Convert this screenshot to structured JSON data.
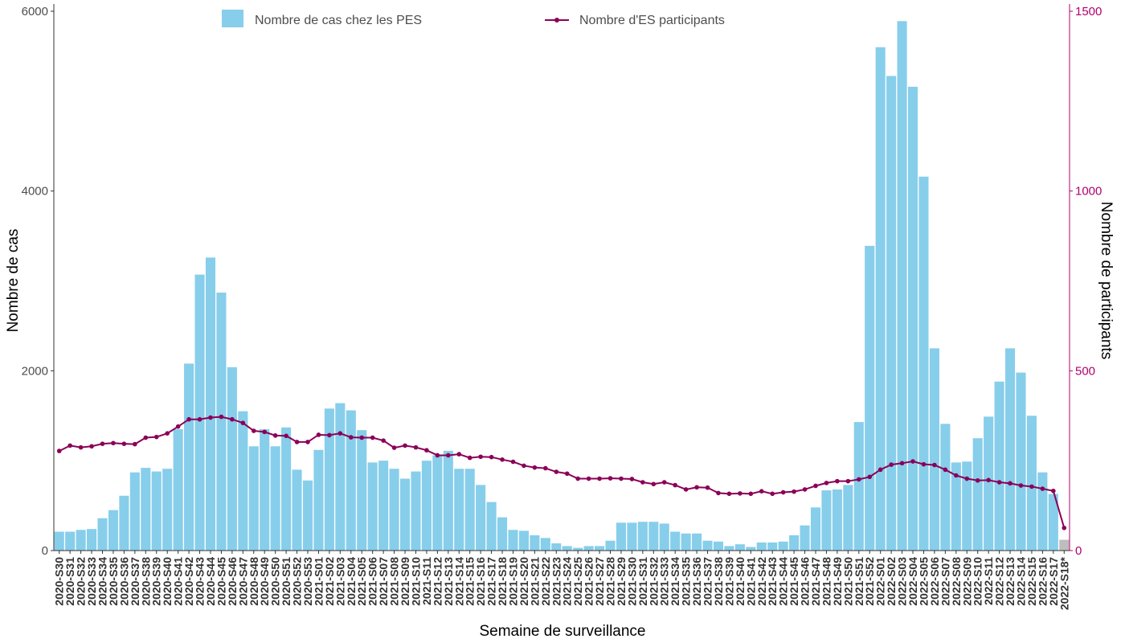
{
  "chart_data": {
    "type": "bar",
    "xlabel": "Semaine de surveillance",
    "ylabel": "Nombre de cas",
    "y2label": "Nombre de participants",
    "ylim": [
      0,
      6000
    ],
    "y2lim": [
      0,
      1500
    ],
    "yticks": [
      0,
      2000,
      4000,
      6000
    ],
    "y2ticks": [
      0,
      500,
      1000,
      1500
    ],
    "grid": false,
    "legend_position": "top",
    "colors": {
      "bars": "#87CEEB",
      "bars_partial": "#BEBEBE",
      "line": "#8B0057",
      "right_axis": "#B0006E"
    },
    "categories": [
      "2020-S30",
      "2020-S31",
      "2020-S32",
      "2020-S33",
      "2020-S34",
      "2020-S35",
      "2020-S36",
      "2020-S37",
      "2020-S38",
      "2020-S39",
      "2020-S40",
      "2020-S41",
      "2020-S42",
      "2020-S43",
      "2020-S44",
      "2020-S45",
      "2020-S46",
      "2020-S47",
      "2020-S48",
      "2020-S49",
      "2020-S50",
      "2020-S51",
      "2020-S52",
      "2020-S53",
      "2021-S01",
      "2021-S02",
      "2021-S03",
      "2021-S04",
      "2021-S05",
      "2021-S06",
      "2021-S07",
      "2021-S08",
      "2021-S09",
      "2021-S10",
      "2021-S11",
      "2021-S12",
      "2021-S13",
      "2021-S14",
      "2021-S15",
      "2021-S16",
      "2021-S17",
      "2021-S18",
      "2021-S19",
      "2021-S20",
      "2021-S21",
      "2021-S22",
      "2021-S23",
      "2021-S24",
      "2021-S25",
      "2021-S26",
      "2021-S27",
      "2021-S28",
      "2021-S29",
      "2021-S30",
      "2021-S31",
      "2021-S32",
      "2021-S33",
      "2021-S34",
      "2021-S35",
      "2021-S36",
      "2021-S37",
      "2021-S38",
      "2021-S39",
      "2021-S40",
      "2021-S41",
      "2021-S42",
      "2021-S43",
      "2021-S44",
      "2021-S45",
      "2021-S46",
      "2021-S47",
      "2021-S48",
      "2021-S49",
      "2021-S50",
      "2021-S51",
      "2021-S52",
      "2022-S01",
      "2022-S02",
      "2022-S03",
      "2022-S04",
      "2022-S05",
      "2022-S06",
      "2022-S07",
      "2022-S08",
      "2022-S09",
      "2022-S10",
      "2022-S11",
      "2022-S12",
      "2022-S13",
      "2022-S14",
      "2022-S15",
      "2022-S16",
      "2022-S17",
      "2022-S18*"
    ],
    "series": [
      {
        "name": "Nombre de cas chez les PES",
        "kind": "bar",
        "axis": "left",
        "values": [
          210,
          210,
          230,
          240,
          360,
          450,
          610,
          870,
          920,
          880,
          910,
          1350,
          2080,
          3070,
          3260,
          2870,
          2040,
          1550,
          1160,
          1350,
          1160,
          1370,
          900,
          780,
          1120,
          1580,
          1640,
          1560,
          1340,
          980,
          1000,
          910,
          800,
          880,
          1000,
          1060,
          1110,
          910,
          910,
          730,
          540,
          370,
          230,
          220,
          170,
          140,
          80,
          50,
          30,
          50,
          50,
          110,
          310,
          310,
          320,
          320,
          300,
          210,
          190,
          190,
          110,
          100,
          50,
          70,
          40,
          90,
          90,
          100,
          170,
          280,
          480,
          670,
          680,
          730,
          1430,
          3390,
          5600,
          5280,
          5890,
          5160,
          4160,
          2250,
          1410,
          980,
          990,
          1250,
          1490,
          1880,
          2250,
          1980,
          1500,
          870,
          630,
          120
        ]
      },
      {
        "name": "Nombre d'ES participants",
        "kind": "line",
        "axis": "right",
        "values": [
          277,
          292,
          287,
          290,
          297,
          299,
          297,
          296,
          314,
          316,
          326,
          345,
          365,
          365,
          370,
          372,
          365,
          355,
          333,
          330,
          320,
          319,
          302,
          302,
          322,
          321,
          326,
          315,
          314,
          314,
          306,
          286,
          292,
          287,
          279,
          265,
          265,
          268,
          258,
          261,
          260,
          253,
          247,
          236,
          231,
          229,
          219,
          214,
          200,
          200,
          200,
          201,
          200,
          199,
          190,
          185,
          190,
          182,
          170,
          176,
          175,
          160,
          158,
          159,
          158,
          165,
          158,
          162,
          164,
          170,
          180,
          188,
          193,
          193,
          198,
          205,
          225,
          239,
          243,
          248,
          240,
          238,
          225,
          209,
          200,
          195,
          196,
          190,
          187,
          181,
          178,
          172,
          166,
          63
        ]
      }
    ]
  }
}
